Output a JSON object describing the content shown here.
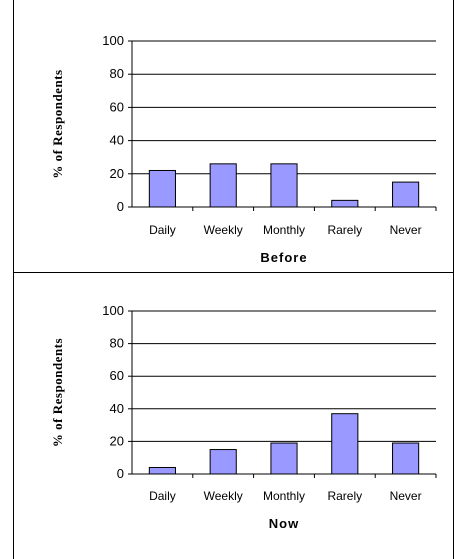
{
  "chart_data": [
    {
      "type": "bar",
      "title": "",
      "xlabel": "Before",
      "ylabel": "% of Respondents",
      "categories": [
        "Daily",
        "Weekly",
        "Monthly",
        "Rarely",
        "Never"
      ],
      "values": [
        22,
        26,
        26,
        4,
        15
      ],
      "ylim": [
        0,
        100
      ],
      "yticks": [
        "0",
        "20",
        "40",
        "60",
        "80",
        "100"
      ],
      "grid": true,
      "bar_color": "#9999ff"
    },
    {
      "type": "bar",
      "title": "",
      "xlabel": "Now",
      "ylabel": "% of Respondents",
      "categories": [
        "Daily",
        "Weekly",
        "Monthly",
        "Rarely",
        "Never"
      ],
      "values": [
        4,
        15,
        19,
        37,
        19
      ],
      "ylim": [
        0,
        100
      ],
      "yticks": [
        "0",
        "20",
        "40",
        "60",
        "80",
        "100"
      ],
      "grid": true,
      "bar_color": "#9999ff"
    }
  ]
}
